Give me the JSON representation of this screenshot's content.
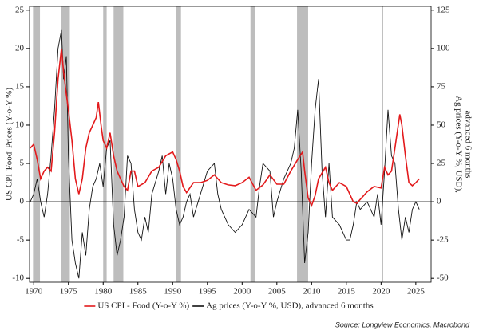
{
  "chart_data": {
    "type": "line",
    "y_label": "US CPI 'Food' Prices (Y-o-Y %)",
    "y2_label": [
      "Ag prices (Y-o-Y %, USD),",
      "advanced 6 months"
    ],
    "source": "Source: Longview Economics, Macrobond",
    "xlim": [
      1969.4,
      2027.2
    ],
    "xticks": [
      1970,
      1975,
      1980,
      1985,
      1990,
      1995,
      2000,
      2005,
      2010,
      2015,
      2020,
      2025
    ],
    "ylim": [
      -10.5,
      25.5
    ],
    "yticks": [
      -10,
      -5,
      0,
      5,
      10,
      15,
      20,
      25
    ],
    "y2lim": [
      -52.5,
      127.5
    ],
    "y2ticks": [
      -50,
      -25,
      0,
      25,
      50,
      75,
      100,
      125
    ],
    "grid": false,
    "legend": "bottom",
    "shading_color": "#bdbdbd",
    "shading": [
      [
        1969.9,
        1970.9
      ],
      [
        1973.9,
        1975.2
      ],
      [
        1980.0,
        1980.5
      ],
      [
        1981.5,
        1982.9
      ],
      [
        1990.5,
        1991.2
      ],
      [
        2001.2,
        2001.9
      ],
      [
        2007.9,
        2009.5
      ],
      [
        2020.1,
        2020.3
      ]
    ],
    "series": [
      {
        "name": "US CPI - Food (Y-o-Y %)",
        "color": "#e31a1c",
        "axis": "y",
        "x": [
          1969.5,
          1970,
          1970.5,
          1971,
          1971.5,
          1972,
          1972.5,
          1973,
          1973.5,
          1974,
          1974.3,
          1974.7,
          1975,
          1975.5,
          1976,
          1976.5,
          1977,
          1977.5,
          1978,
          1978.5,
          1979,
          1979.3,
          1979.7,
          1980,
          1980.5,
          1981,
          1981.5,
          1982,
          1982.5,
          1983,
          1983.5,
          1984,
          1984.5,
          1985,
          1986,
          1987,
          1988,
          1989,
          1990,
          1990.5,
          1991,
          1991.5,
          1992,
          1993,
          1994,
          1995,
          1996,
          1997,
          1998,
          1999,
          2000,
          2001,
          2002,
          2003,
          2004,
          2005,
          2006,
          2007,
          2008,
          2008.7,
          2009,
          2009.5,
          2010,
          2010.5,
          2011,
          2012,
          2012.5,
          2013,
          2014,
          2015,
          2016,
          2016.5,
          2017,
          2018,
          2019,
          2020,
          2020.5,
          2021,
          2021.5,
          2022,
          2022.7,
          2023,
          2023.5,
          2024,
          2024.5,
          2025,
          2025.5
        ],
        "values": [
          7,
          7.5,
          5.5,
          3,
          4,
          4.5,
          4,
          9,
          16,
          20,
          17,
          14,
          12,
          8,
          3,
          1,
          3,
          7,
          9,
          10,
          11,
          13,
          10,
          8,
          7,
          9,
          6,
          4,
          3,
          2,
          1.5,
          4,
          4,
          2,
          2.5,
          4,
          4.5,
          6,
          6.5,
          5.5,
          4,
          2,
          1.2,
          2.5,
          2.5,
          2.8,
          3.5,
          2.5,
          2.2,
          2.1,
          2.5,
          3.2,
          1.5,
          2.2,
          3.5,
          2.3,
          2.3,
          4,
          5.5,
          6.5,
          4,
          0.5,
          -0.5,
          0.8,
          3,
          4.5,
          2.5,
          1.5,
          2.5,
          2,
          0,
          -0.2,
          0.3,
          1.3,
          2,
          1.8,
          4.5,
          3.5,
          4,
          7,
          11.4,
          10,
          6,
          2.5,
          2.1,
          2.5,
          3
        ]
      },
      {
        "name": "Ag prices (Y-o-Y %, USD), advanced 6 months",
        "color": "#111111",
        "axis": "y2",
        "x": [
          1969.5,
          1970,
          1970.5,
          1971,
          1971.5,
          1972,
          1972.5,
          1973,
          1973.5,
          1974,
          1974.3,
          1974.7,
          1975,
          1975.5,
          1976,
          1976.5,
          1977,
          1977.5,
          1978,
          1978.5,
          1979,
          1979.5,
          1980,
          1980.5,
          1981,
          1981.5,
          1982,
          1982.5,
          1983,
          1983.5,
          1984,
          1984.5,
          1985,
          1985.5,
          1986,
          1986.5,
          1987,
          1988,
          1988.5,
          1989,
          1989.5,
          1990,
          1990.5,
          1991,
          1991.5,
          1992,
          1992.5,
          1993,
          1994,
          1995,
          1996,
          1996.5,
          1997,
          1998,
          1999,
          2000,
          2001,
          2002,
          2002.5,
          2003,
          2004,
          2004.5,
          2005,
          2006,
          2007,
          2007.5,
          2008,
          2008.5,
          2009,
          2009.5,
          2010,
          2010.5,
          2011,
          2011.5,
          2012,
          2012.5,
          2013,
          2014,
          2015,
          2015.5,
          2016,
          2016.5,
          2017,
          2018,
          2019,
          2019.5,
          2020,
          2020.5,
          2021,
          2021.5,
          2022,
          2022.5,
          2023,
          2023.5,
          2024,
          2024.5,
          2025,
          2025.5
        ],
        "values": [
          0,
          5,
          15,
          0,
          -10,
          5,
          30,
          60,
          100,
          112,
          80,
          95,
          30,
          -25,
          -40,
          -50,
          -20,
          -35,
          -5,
          10,
          15,
          25,
          10,
          35,
          40,
          -15,
          -35,
          -25,
          -10,
          30,
          25,
          -5,
          -20,
          -25,
          -10,
          -20,
          5,
          20,
          30,
          5,
          25,
          15,
          -5,
          -15,
          -10,
          0,
          5,
          -10,
          5,
          20,
          25,
          5,
          -5,
          -15,
          -20,
          -15,
          -5,
          -10,
          10,
          25,
          20,
          -10,
          0,
          15,
          25,
          35,
          60,
          20,
          -40,
          -20,
          25,
          60,
          80,
          20,
          -10,
          25,
          -10,
          -15,
          -25,
          -25,
          -15,
          0,
          -5,
          0,
          -10,
          5,
          -15,
          20,
          60,
          30,
          25,
          -5,
          -25,
          -10,
          -20,
          -5,
          0,
          -5
        ]
      }
    ]
  }
}
